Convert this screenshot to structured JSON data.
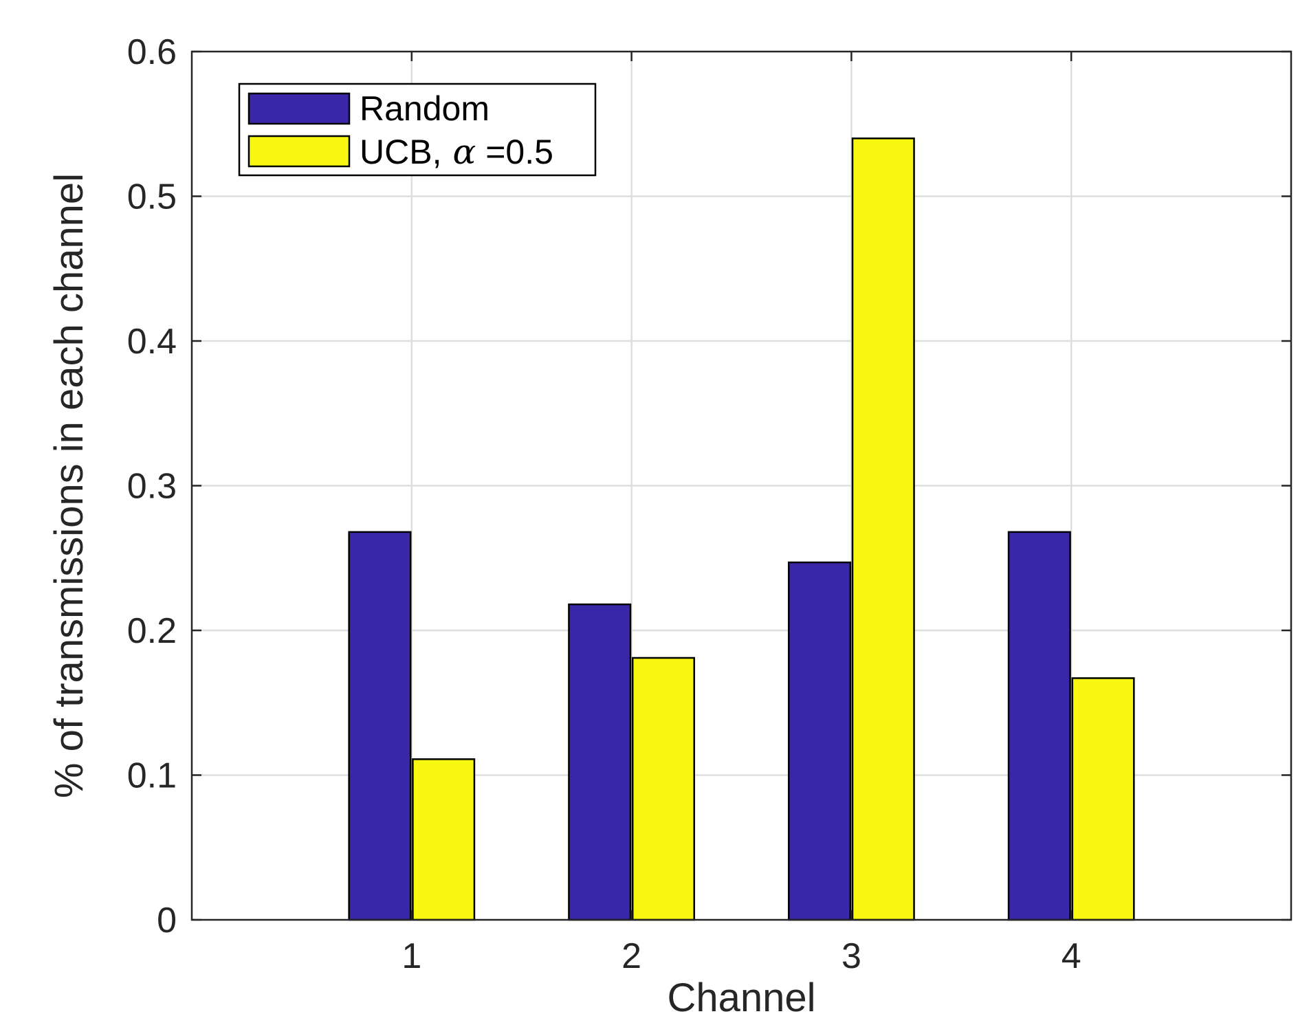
{
  "chart_data": {
    "type": "bar",
    "title": "",
    "xlabel": "Channel",
    "ylabel": "% of transmissions in each channel",
    "categories": [
      "1",
      "2",
      "3",
      "4"
    ],
    "series": [
      {
        "name": "Random",
        "values": [
          0.268,
          0.218,
          0.247,
          0.268
        ],
        "color": "#3a27a8"
      },
      {
        "name": "UCB, α =0.5",
        "name_prefix": "UCB,",
        "name_symbol": "α",
        "name_suffix": "=0.5",
        "values": [
          0.111,
          0.181,
          0.54,
          0.167
        ],
        "color": "#f7f710"
      }
    ],
    "xlim": [
      0,
      5
    ],
    "ylim": [
      0,
      0.6
    ],
    "yticks": [
      "0",
      "0.1",
      "0.2",
      "0.3",
      "0.4",
      "0.5",
      "0.6"
    ],
    "grid": true,
    "legend_position": "top-left"
  }
}
